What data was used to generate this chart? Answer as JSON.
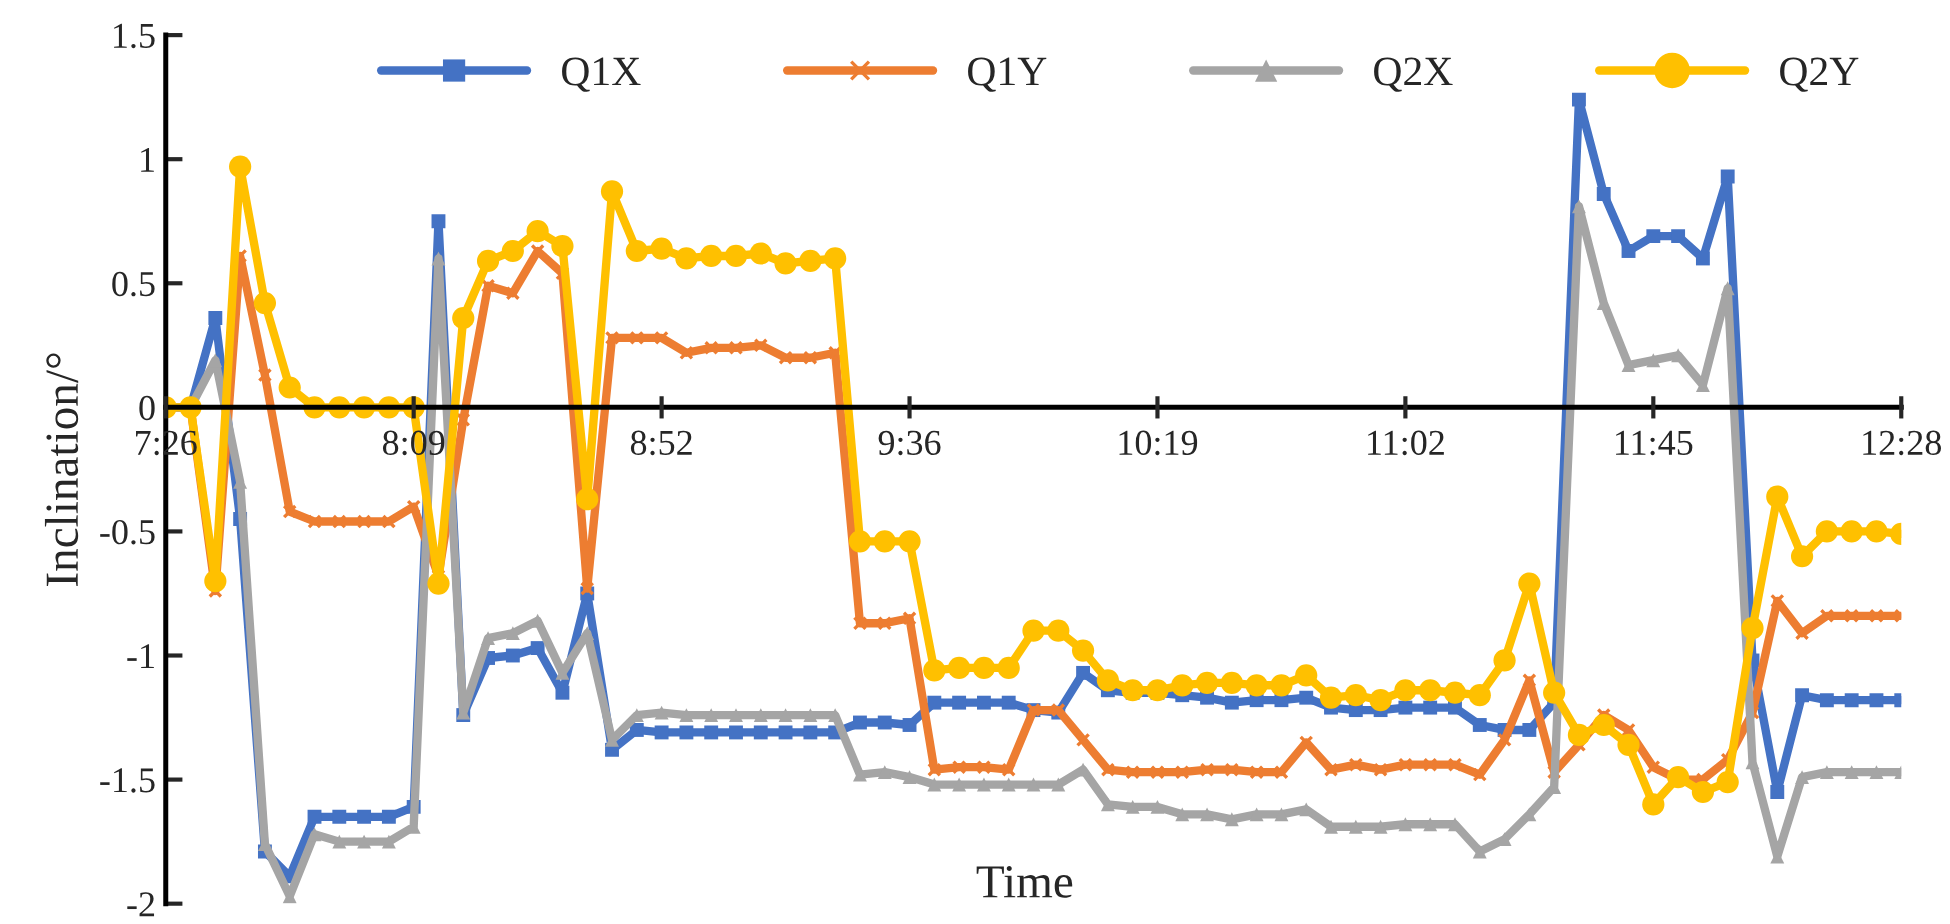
{
  "chart_data": {
    "type": "line",
    "xlabel": "Time",
    "ylabel": "Inclination/°",
    "categories": [
      "7:26",
      null,
      null,
      null,
      null,
      null,
      null,
      null,
      null,
      null,
      "8:09",
      null,
      null,
      null,
      null,
      null,
      null,
      null,
      null,
      null,
      "8:52",
      null,
      null,
      null,
      null,
      null,
      null,
      null,
      null,
      null,
      "9:36",
      null,
      null,
      null,
      null,
      null,
      null,
      null,
      null,
      null,
      "10:19",
      null,
      null,
      null,
      null,
      null,
      null,
      null,
      null,
      null,
      "11:02",
      null,
      null,
      null,
      null,
      null,
      null,
      null,
      null,
      null,
      "11:45",
      null,
      null,
      null,
      null,
      null,
      null,
      null,
      null,
      null,
      "12:28"
    ],
    "series": [
      {
        "name": "Q1X",
        "color": "#4472c4",
        "marker": "square",
        "values": [
          0,
          0,
          0.36,
          -0.45,
          -1.79,
          -1.89,
          -1.65,
          -1.65,
          -1.65,
          -1.65,
          -1.61,
          0.75,
          -1.24,
          -1.01,
          -1.0,
          -0.97,
          -1.15,
          -0.75,
          -1.38,
          -1.3,
          -1.31,
          -1.31,
          -1.31,
          -1.31,
          -1.31,
          -1.31,
          -1.31,
          -1.31,
          -1.27,
          -1.27,
          -1.28,
          -1.19,
          -1.19,
          -1.19,
          -1.19,
          -1.22,
          -1.23,
          -1.07,
          -1.14,
          -1.15,
          -1.15,
          -1.16,
          -1.17,
          -1.19,
          -1.18,
          -1.18,
          -1.17,
          -1.21,
          -1.22,
          -1.22,
          -1.21,
          -1.21,
          -1.21,
          -1.28,
          -1.3,
          -1.3,
          -1.19,
          1.24,
          0.86,
          0.63,
          0.69,
          0.69,
          0.6,
          0.93,
          -1.02,
          -1.55,
          -1.16,
          -1.18,
          -1.18,
          -1.18,
          -1.18
        ]
      },
      {
        "name": "Q1Y",
        "color": "#ed7d31",
        "marker": "cross",
        "values": [
          0,
          0,
          -0.74,
          0.61,
          0.13,
          -0.42,
          -0.46,
          -0.46,
          -0.46,
          -0.46,
          -0.4,
          -0.68,
          -0.05,
          0.49,
          0.46,
          0.63,
          0.54,
          -0.73,
          0.28,
          0.28,
          0.28,
          0.22,
          0.24,
          0.24,
          0.25,
          0.2,
          0.2,
          0.22,
          -0.87,
          -0.87,
          -0.85,
          -1.46,
          -1.45,
          -1.45,
          -1.46,
          -1.22,
          -1.22,
          -1.34,
          -1.46,
          -1.47,
          -1.47,
          -1.47,
          -1.46,
          -1.46,
          -1.47,
          -1.47,
          -1.35,
          -1.46,
          -1.44,
          -1.46,
          -1.44,
          -1.44,
          -1.44,
          -1.48,
          -1.34,
          -1.1,
          -1.47,
          -1.36,
          -1.24,
          -1.3,
          -1.45,
          -1.5,
          -1.5,
          -1.42,
          -1.23,
          -0.78,
          -0.91,
          -0.84,
          -0.84,
          -0.84,
          -0.84
        ]
      },
      {
        "name": "Q2X",
        "color": "#a5a5a5",
        "marker": "triangle",
        "values": [
          0,
          0,
          0.19,
          -0.3,
          -1.76,
          -1.97,
          -1.72,
          -1.75,
          -1.75,
          -1.75,
          -1.69,
          0.6,
          -1.23,
          -0.93,
          -0.91,
          -0.86,
          -1.07,
          -0.91,
          -1.34,
          -1.24,
          -1.23,
          -1.24,
          -1.24,
          -1.24,
          -1.24,
          -1.24,
          -1.24,
          -1.24,
          -1.48,
          -1.47,
          -1.49,
          -1.52,
          -1.52,
          -1.52,
          -1.52,
          -1.52,
          -1.52,
          -1.46,
          -1.6,
          -1.61,
          -1.61,
          -1.64,
          -1.64,
          -1.66,
          -1.64,
          -1.64,
          -1.62,
          -1.69,
          -1.69,
          -1.69,
          -1.68,
          -1.68,
          -1.68,
          -1.79,
          -1.74,
          -1.64,
          -1.53,
          0.81,
          0.42,
          0.17,
          0.19,
          0.21,
          0.09,
          0.48,
          -1.43,
          -1.81,
          -1.49,
          -1.47,
          -1.47,
          -1.47,
          -1.47
        ]
      },
      {
        "name": "Q2Y",
        "color": "#ffc000",
        "marker": "circle",
        "values": [
          0,
          0,
          -0.7,
          0.97,
          0.42,
          0.08,
          0,
          0,
          0,
          0,
          0,
          -0.71,
          0.36,
          0.59,
          0.63,
          0.71,
          0.65,
          -0.37,
          0.87,
          0.63,
          0.64,
          0.6,
          0.61,
          0.61,
          0.62,
          0.58,
          0.59,
          0.6,
          -0.54,
          -0.54,
          -0.54,
          -1.06,
          -1.05,
          -1.05,
          -1.05,
          -0.9,
          -0.9,
          -0.98,
          -1.1,
          -1.14,
          -1.14,
          -1.12,
          -1.11,
          -1.11,
          -1.12,
          -1.12,
          -1.08,
          -1.17,
          -1.16,
          -1.18,
          -1.14,
          -1.14,
          -1.15,
          -1.16,
          -1.02,
          -0.71,
          -1.15,
          -1.32,
          -1.28,
          -1.36,
          -1.6,
          -1.49,
          -1.55,
          -1.51,
          -0.89,
          -0.36,
          -0.6,
          -0.5,
          -0.5,
          -0.5,
          -0.51
        ]
      }
    ],
    "ylim": [
      -2,
      1.5
    ],
    "yticks": [
      -2,
      -1.5,
      -1,
      -0.5,
      0,
      0.5,
      1,
      1.5
    ],
    "legend": "top",
    "grid": false,
    "line_style": "solid"
  }
}
